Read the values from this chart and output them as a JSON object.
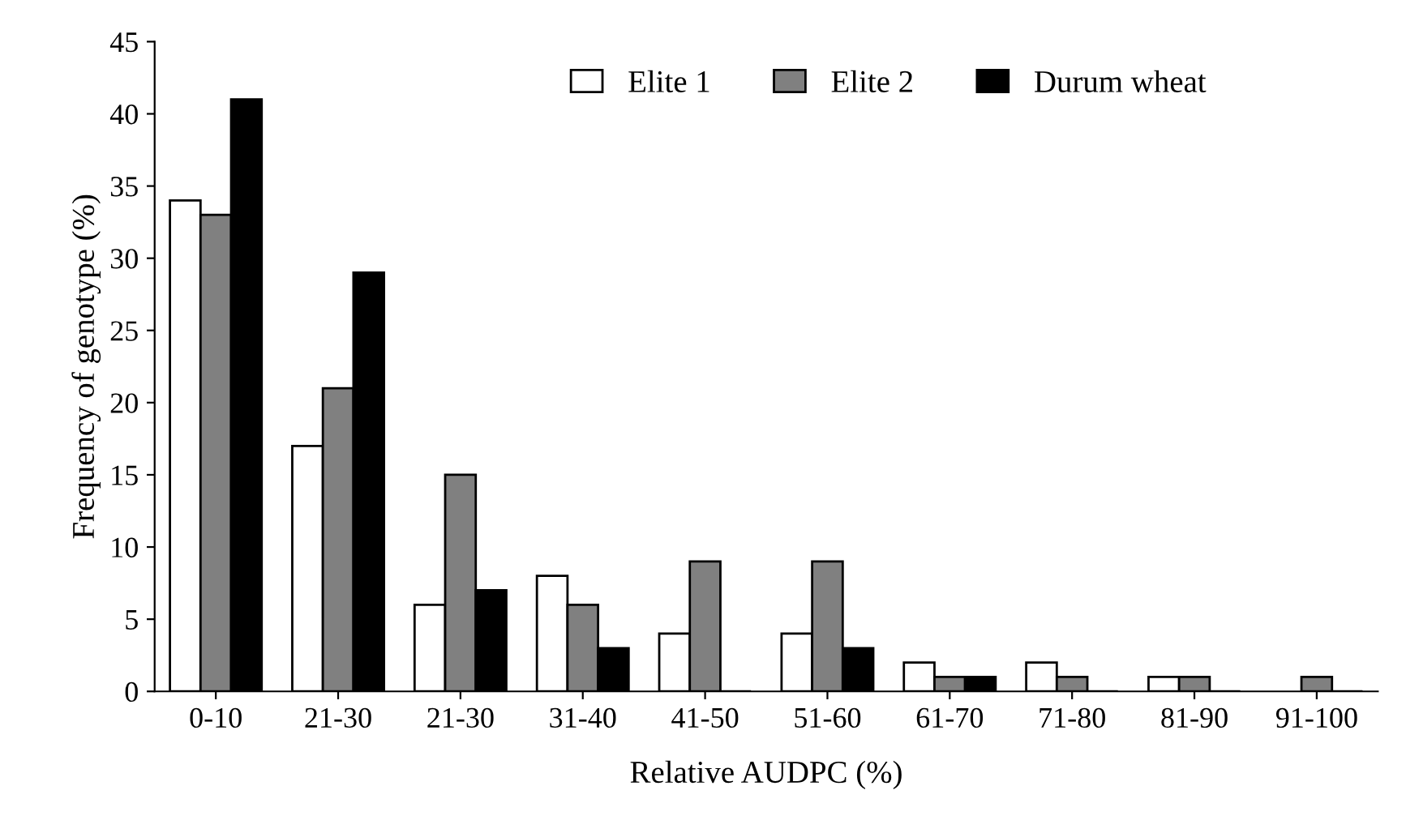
{
  "chart_data": {
    "type": "bar",
    "xlabel": "Relative AUDPC (%)",
    "ylabel": "Frequency of genotype (%)",
    "categories": [
      "0-10",
      "21-30",
      "21-30",
      "31-40",
      "41-50",
      "51-60",
      "61-70",
      "71-80",
      "81-90",
      "91-100"
    ],
    "series": [
      {
        "name": "Elite 1",
        "color": "#ffffff",
        "values": [
          34,
          17,
          6,
          8,
          4,
          4,
          2,
          2,
          1,
          0
        ]
      },
      {
        "name": "Elite 2",
        "color": "#808080",
        "values": [
          33,
          21,
          15,
          6,
          9,
          9,
          1,
          1,
          1,
          1
        ]
      },
      {
        "name": "Durum wheat",
        "color": "#000000",
        "values": [
          41,
          29,
          7,
          3,
          0,
          3,
          1,
          0,
          0,
          0
        ]
      }
    ],
    "ylim": [
      0,
      45
    ],
    "yticks": [
      0,
      5,
      10,
      15,
      20,
      25,
      30,
      35,
      40,
      45
    ],
    "grid": false,
    "legend": "top"
  }
}
